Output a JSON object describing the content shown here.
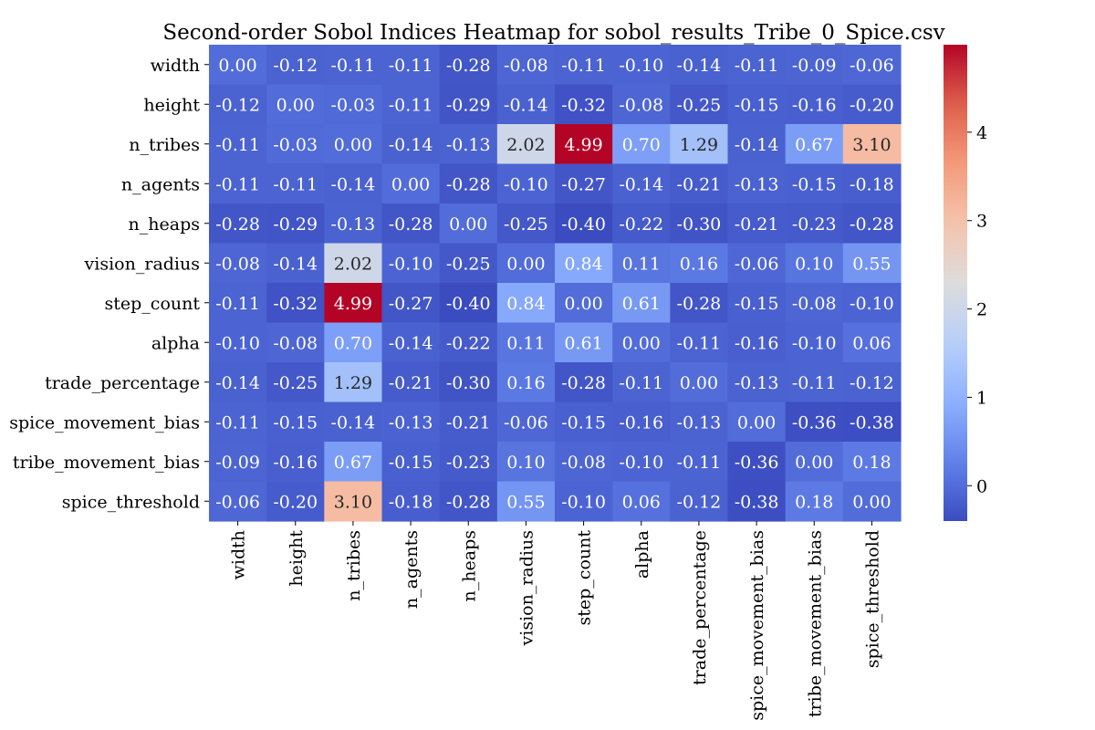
{
  "chart_data": {
    "type": "heatmap",
    "title": "Second-order Sobol Indices Heatmap for sobol_results_Tribe_0_Spice.csv",
    "xlabel": "",
    "ylabel": "",
    "x_categories": [
      "width",
      "height",
      "n_tribes",
      "n_agents",
      "n_heaps",
      "vision_radius",
      "step_count",
      "alpha",
      "trade_percentage",
      "spice_movement_bias",
      "tribe_movement_bias",
      "spice_threshold"
    ],
    "y_categories": [
      "width",
      "height",
      "n_tribes",
      "n_agents",
      "n_heaps",
      "vision_radius",
      "step_count",
      "alpha",
      "trade_percentage",
      "spice_movement_bias",
      "tribe_movement_bias",
      "spice_threshold"
    ],
    "values": [
      [
        0.0,
        -0.12,
        -0.11,
        -0.11,
        -0.28,
        -0.08,
        -0.11,
        -0.1,
        -0.14,
        -0.11,
        -0.09,
        -0.06
      ],
      [
        -0.12,
        0.0,
        -0.03,
        -0.11,
        -0.29,
        -0.14,
        -0.32,
        -0.08,
        -0.25,
        -0.15,
        -0.16,
        -0.2
      ],
      [
        -0.11,
        -0.03,
        0.0,
        -0.14,
        -0.13,
        2.02,
        4.99,
        0.7,
        1.29,
        -0.14,
        0.67,
        3.1
      ],
      [
        -0.11,
        -0.11,
        -0.14,
        0.0,
        -0.28,
        -0.1,
        -0.27,
        -0.14,
        -0.21,
        -0.13,
        -0.15,
        -0.18
      ],
      [
        -0.28,
        -0.29,
        -0.13,
        -0.28,
        0.0,
        -0.25,
        -0.4,
        -0.22,
        -0.3,
        -0.21,
        -0.23,
        -0.28
      ],
      [
        -0.08,
        -0.14,
        2.02,
        -0.1,
        -0.25,
        0.0,
        0.84,
        0.11,
        0.16,
        -0.06,
        0.1,
        0.55
      ],
      [
        -0.11,
        -0.32,
        4.99,
        -0.27,
        -0.4,
        0.84,
        0.0,
        0.61,
        -0.28,
        -0.15,
        -0.08,
        -0.1
      ],
      [
        -0.1,
        -0.08,
        0.7,
        -0.14,
        -0.22,
        0.11,
        0.61,
        0.0,
        -0.11,
        -0.16,
        -0.1,
        0.06
      ],
      [
        -0.14,
        -0.25,
        1.29,
        -0.21,
        -0.3,
        0.16,
        -0.28,
        -0.11,
        0.0,
        -0.13,
        -0.11,
        -0.12
      ],
      [
        -0.11,
        -0.15,
        -0.14,
        -0.13,
        -0.21,
        -0.06,
        -0.15,
        -0.16,
        -0.13,
        0.0,
        -0.36,
        -0.38
      ],
      [
        -0.09,
        -0.16,
        0.67,
        -0.15,
        -0.23,
        0.1,
        -0.08,
        -0.1,
        -0.11,
        -0.36,
        0.0,
        0.18
      ],
      [
        -0.06,
        -0.2,
        3.1,
        -0.18,
        -0.28,
        0.55,
        -0.1,
        0.06,
        -0.12,
        -0.38,
        0.18,
        0.0
      ]
    ],
    "colormap": "coolwarm",
    "vmin": -0.4,
    "vmax": 4.99,
    "colorbar_ticks": [
      0,
      1,
      2,
      3,
      4
    ],
    "annotated": true,
    "grid": false,
    "legend": "colorbar-right"
  }
}
